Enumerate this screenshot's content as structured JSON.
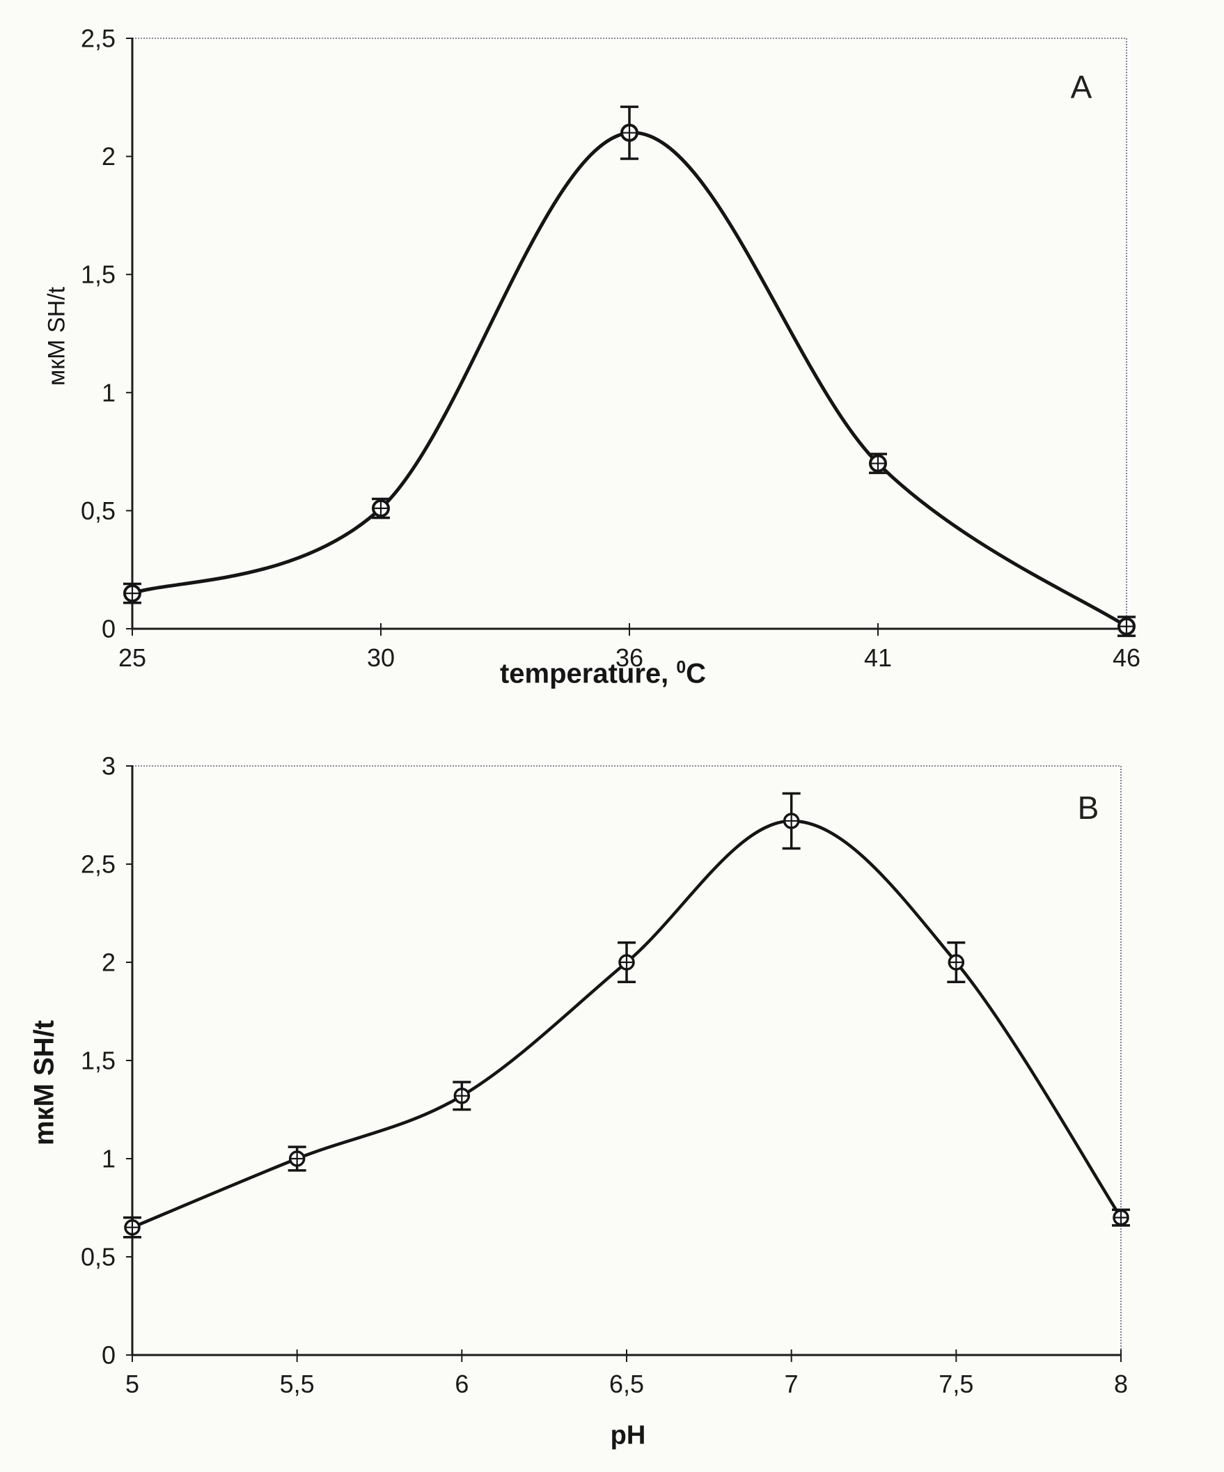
{
  "figure": {
    "description": "Two-panel line chart of SH-group formation rate",
    "panel_a_letter": "A",
    "panel_b_letter": "B"
  },
  "style": {
    "background": "#fbfbf8",
    "line_color": "#151515",
    "axis_color": "#1c1c1c",
    "frame_color": "#63637c",
    "text_color": "#1a1a1a",
    "marker_fill": "#ffffff"
  },
  "chart_data": [
    {
      "id": "panel-a",
      "type": "line",
      "panel_label": "A",
      "title": "",
      "xlabel": "temperature, ⁰C",
      "xlabel_parts": [
        [
          "temperature, ",
          "n"
        ],
        [
          "0",
          "sup"
        ],
        [
          "C",
          "n"
        ]
      ],
      "ylabel": "мкМ SH/t",
      "x": [
        25,
        30,
        36,
        41,
        46
      ],
      "x_tick_labels": [
        "25",
        "30",
        "36",
        "41",
        "46"
      ],
      "values": [
        0.15,
        0.51,
        2.1,
        0.7,
        0.01
      ],
      "errors": [
        0.04,
        0.04,
        0.11,
        0.04,
        0.04
      ],
      "ylim": [
        0,
        2.5
      ],
      "y_ticks": [
        0,
        0.5,
        1,
        1.5,
        2,
        2.5
      ],
      "y_tick_labels": [
        "0",
        "0,5",
        "1",
        "1,5",
        "2",
        "2,5"
      ],
      "grid": false,
      "legend": "none",
      "marker": "open-circle-crosshair",
      "error_bars": true,
      "smooth": true
    },
    {
      "id": "panel-b",
      "type": "line",
      "panel_label": "B",
      "title": "",
      "xlabel": "pH",
      "ylabel": "mкM SH/t",
      "x": [
        5,
        5.5,
        6,
        6.5,
        7,
        7.5,
        8
      ],
      "x_tick_labels": [
        "5",
        "5,5",
        "6",
        "6,5",
        "7",
        "7,5",
        "8"
      ],
      "values": [
        0.65,
        1.0,
        1.32,
        2.0,
        2.72,
        2.0,
        0.7
      ],
      "errors": [
        0.05,
        0.06,
        0.07,
        0.1,
        0.14,
        0.1,
        0.04
      ],
      "ylim": [
        0,
        3
      ],
      "y_ticks": [
        0,
        0.5,
        1,
        1.5,
        2,
        2.5,
        3
      ],
      "y_tick_labels": [
        "0",
        "0,5",
        "1",
        "1,5",
        "2",
        "2,5",
        "3"
      ],
      "grid": false,
      "legend": "none",
      "marker": "open-circle-crosshair",
      "error_bars": true,
      "smooth": true
    }
  ]
}
